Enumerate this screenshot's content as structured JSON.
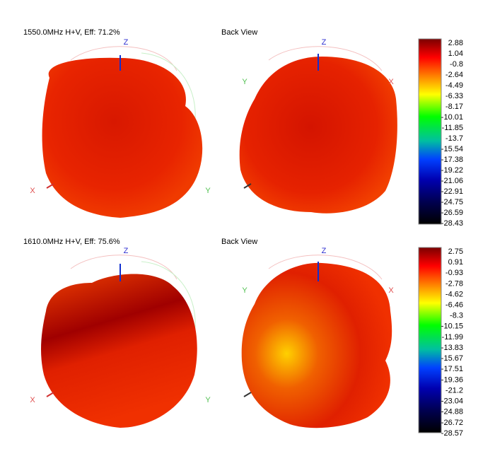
{
  "plots": [
    {
      "title": "1550.0MHz H+V, Eff: 71.2%",
      "axes": [
        "Z",
        "X",
        "Y"
      ]
    },
    {
      "title": "Back View",
      "axes": [
        "Z",
        "Y",
        "X"
      ]
    },
    {
      "title": "1610.0MHz H+V, Eff: 75.6%",
      "axes": [
        "Z",
        "X",
        "Y"
      ]
    },
    {
      "title": "Back View",
      "axes": [
        "Z",
        "Y",
        "X"
      ]
    }
  ],
  "colorbars": [
    {
      "ticks": [
        2.88,
        1.04,
        -0.8,
        -2.64,
        -4.49,
        -6.33,
        -8.17,
        -10.01,
        -11.85,
        -13.7,
        -15.54,
        -17.38,
        -19.22,
        -21.06,
        -22.91,
        -24.75,
        -26.59,
        -28.43
      ]
    },
    {
      "ticks": [
        2.75,
        0.91,
        -0.93,
        -2.78,
        -4.62,
        -6.46,
        -8.3,
        -10.15,
        -11.99,
        -13.83,
        -15.67,
        -17.51,
        -19.36,
        -21.2,
        -23.04,
        -24.88,
        -26.72,
        -28.57
      ]
    }
  ]
}
